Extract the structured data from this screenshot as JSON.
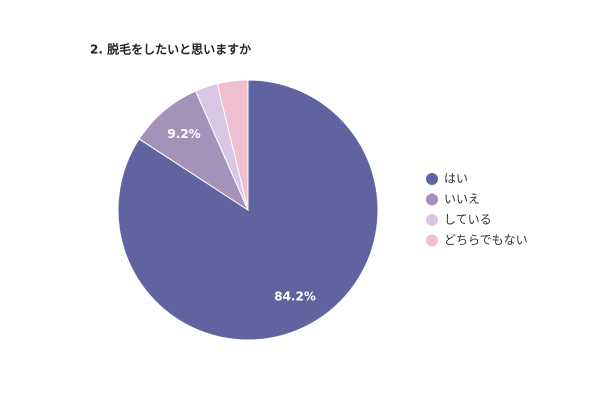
{
  "chart_data": {
    "type": "pie",
    "title": "2. 脱毛をしたいと思いますか",
    "categories": [
      "はい",
      "いいえ",
      "している",
      "どちらでもない"
    ],
    "values": [
      84.2,
      9.2,
      2.8,
      3.8
    ],
    "value_labels": [
      "84.2%",
      "9.2%",
      null,
      null
    ],
    "colors": [
      "#5f64a0",
      "#a592b9",
      "#d9c6e3",
      "#efbfd0"
    ],
    "legend": "right"
  }
}
